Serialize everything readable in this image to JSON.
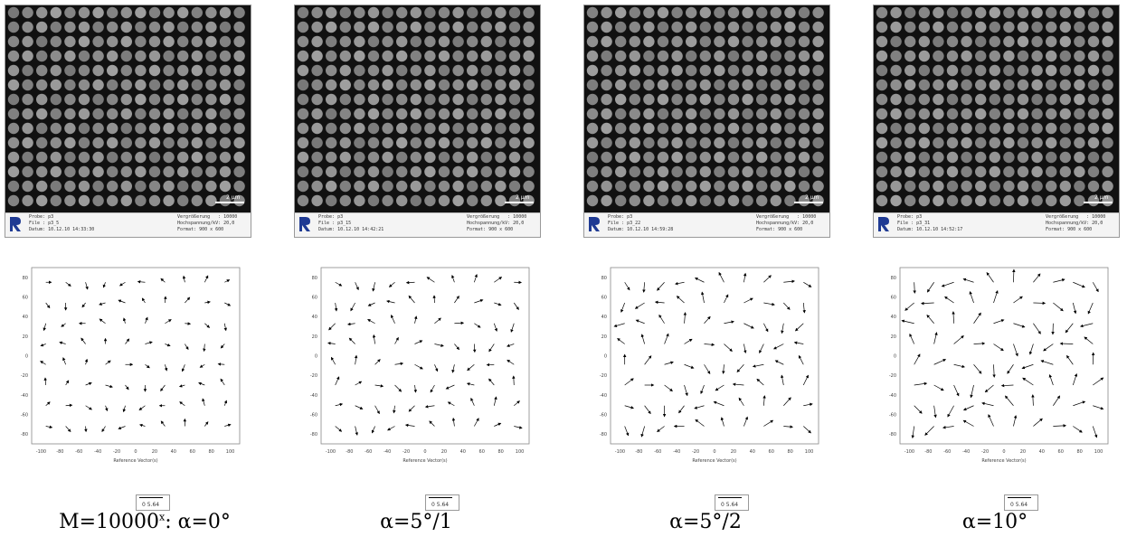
{
  "panels": [
    {
      "sem": {
        "line1": "Probe: p3",
        "line2": "File : p3_5",
        "line3": "Datum: 10.12.10 14:33:30",
        "line4": "Vergrößerung   : 10000",
        "line5": "Hochspannung/kV: 20,0",
        "line6": "Format: 900 x 600",
        "scale": "2 µm"
      },
      "caption": "M=10000",
      "caption_sup": "x",
      "caption_suffix": ": α=0°"
    },
    {
      "sem": {
        "line1": "Probe: p3",
        "line2": "File : p3_15",
        "line3": "Datum: 10.12.10 14:42:21",
        "line4": "Vergrößerung   : 10000",
        "line5": "Hochspannung/kV: 20,0",
        "line6": "Format: 900 x 600",
        "scale": "2 µm"
      },
      "caption": "α=5°/1"
    },
    {
      "sem": {
        "line1": "Probe: p3",
        "line2": "File : p3_22",
        "line3": "Datum: 10.12.10 14:59:28",
        "line4": "Vergrößerung   : 10000",
        "line5": "Hochspannung/kV: 20,0",
        "line6": "Format: 900 x 600",
        "scale": "2 µm"
      },
      "caption": "α=5°/2"
    },
    {
      "sem": {
        "line1": "Probe: p3",
        "line2": "File : p3_31",
        "line3": "Datum: 10.12.10 14:52:17",
        "line4": "Vergrößerung   : 10000",
        "line5": "Hochspannung/kV: 20,0",
        "line6": "Format: 900 x 600",
        "scale": "2 µm"
      },
      "caption": "α=10°"
    }
  ],
  "vector_plot": {
    "xlabel": "Reference Vector(s)",
    "legend_value": "0  5.64",
    "xticks": [
      -100,
      -80,
      -60,
      -40,
      -20,
      0,
      20,
      40,
      60,
      80,
      100
    ],
    "yticks": [
      80,
      60,
      40,
      20,
      0,
      -20,
      -40,
      -60,
      -80
    ]
  },
  "colors": {
    "sem_bg": "#111111",
    "dot": "#a8a8a8",
    "arrow": "#000000",
    "logo": "#1f3a93"
  }
}
